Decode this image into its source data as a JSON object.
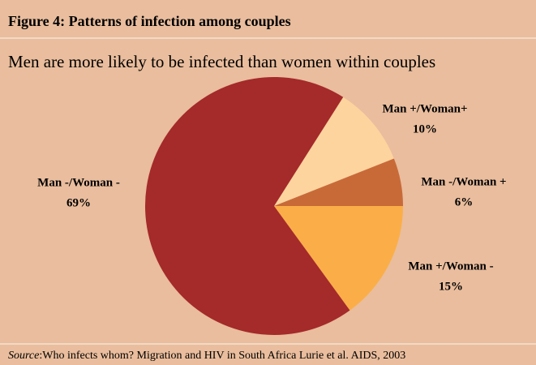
{
  "chart_data": {
    "type": "pie",
    "title": "Figure 4: Patterns of infection among couples",
    "subtitle": "Men are more likely to be infected than women within couples",
    "categories": [
      "Man +/Woman+",
      "Man -/Woman +",
      "Man +/Woman -",
      "Man -/Woman -"
    ],
    "values": [
      10,
      6,
      15,
      69
    ],
    "value_labels": [
      "10%",
      "6%",
      "15%",
      "69%"
    ],
    "colors": [
      "#fdd49e",
      "#c86a38",
      "#fbae47",
      "#a52a2a"
    ],
    "source": {
      "label": "Source",
      "text": ":Who infects whom? Migration and HIV in South Africa Lurie et al. AIDS, 2003"
    }
  }
}
